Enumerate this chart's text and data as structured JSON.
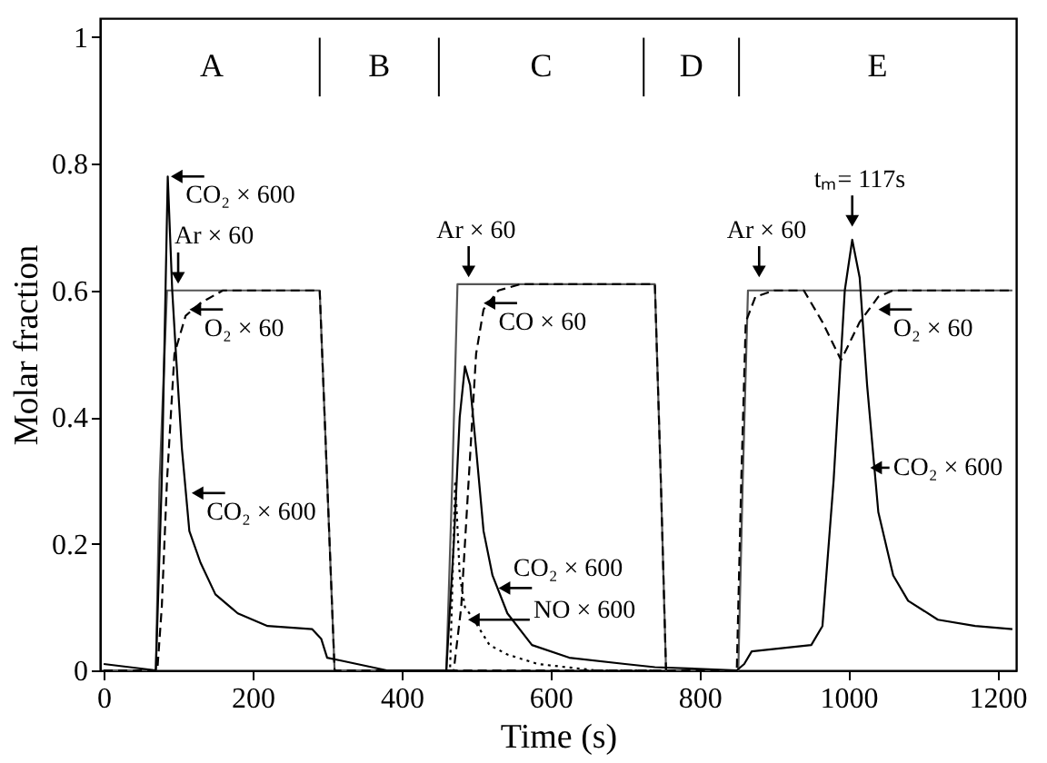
{
  "chart_data": {
    "type": "line",
    "xlabel": "Time (s)",
    "ylabel": "Molar fraction",
    "xlim": [
      -5,
      1225
    ],
    "ylim": [
      0,
      1.03
    ],
    "xticks": [
      0,
      200,
      400,
      600,
      800,
      1000,
      1200
    ],
    "yticks": [
      0,
      0.2,
      0.4,
      0.6,
      0.8,
      1
    ],
    "grid": false,
    "marker": "none",
    "series": [
      {
        "color": "#555555",
        "line_style": "solid",
        "x": [
          0,
          70,
          75,
          85,
          290,
          300,
          310,
          460,
          468,
          475,
          740,
          748,
          755,
          852,
          858,
          865,
          1220
        ],
        "values": [
          0,
          0,
          0.3,
          0.6,
          0.6,
          0.3,
          0,
          0,
          0.3,
          0.61,
          0.61,
          0.3,
          0,
          0,
          0.3,
          0.6,
          0.6
        ]
      },
      {
        "color": "#000000",
        "line_style": "solid",
        "x": [
          0,
          70,
          78,
          86,
          92,
          97,
          105,
          115,
          130,
          150,
          180,
          220,
          280,
          292,
          300,
          320,
          360,
          380,
          460,
          470,
          478,
          485,
          492,
          500,
          510,
          522,
          542,
          575,
          625,
          700,
          740,
          850,
          860,
          870,
          950,
          965,
          980,
          995,
          1005,
          1015,
          1025,
          1040,
          1060,
          1080,
          1120,
          1170,
          1220
        ],
        "values": [
          0.01,
          0,
          0.3,
          0.78,
          0.6,
          0.5,
          0.35,
          0.22,
          0.17,
          0.12,
          0.09,
          0.07,
          0.065,
          0.05,
          0.02,
          0.015,
          0.005,
          0,
          0,
          0.2,
          0.4,
          0.48,
          0.45,
          0.35,
          0.22,
          0.15,
          0.09,
          0.04,
          0.02,
          0.01,
          0.005,
          0,
          0.01,
          0.03,
          0.04,
          0.07,
          0.3,
          0.6,
          0.68,
          0.62,
          0.45,
          0.25,
          0.15,
          0.11,
          0.08,
          0.07,
          0.065
        ]
      },
      {
        "color": "#000000",
        "line_style": "dashed",
        "x": [
          0,
          72,
          78,
          85,
          95,
          110,
          130,
          160,
          290,
          300,
          310,
          850,
          856,
          862,
          875,
          900,
          940,
          965,
          990,
          1015,
          1040,
          1060,
          1220
        ],
        "values": [
          0,
          0,
          0.1,
          0.3,
          0.5,
          0.56,
          0.58,
          0.6,
          0.6,
          0.3,
          0,
          0,
          0.3,
          0.55,
          0.59,
          0.6,
          0.6,
          0.55,
          0.49,
          0.55,
          0.59,
          0.6,
          0.6
        ]
      },
      {
        "color": "#000000",
        "line_style": "dashed",
        "x": [
          440,
          470,
          480,
          490,
          500,
          510,
          530,
          560,
          740,
          748,
          755
        ],
        "values": [
          0,
          0,
          0.1,
          0.3,
          0.5,
          0.57,
          0.6,
          0.61,
          0.61,
          0.3,
          0
        ]
      },
      {
        "color": "#000000",
        "line_style": "dotted",
        "x": [
          440,
          465,
          472,
          478,
          485,
          497,
          518,
          542,
          583,
          660,
          740
        ],
        "values": [
          0,
          0,
          0.3,
          0.15,
          0.1,
          0.08,
          0.04,
          0.025,
          0.01,
          0,
          0
        ]
      }
    ],
    "ref_lines": [
      {
        "axis": "x",
        "value": 290
      },
      {
        "axis": "x",
        "value": 450
      },
      {
        "axis": "x",
        "value": 725
      },
      {
        "axis": "x",
        "value": 853
      }
    ],
    "annotations": [
      "A",
      "B",
      "C",
      "D",
      "E",
      {
        "text": "CO₂ × 600",
        "x": 90,
        "y": 0.78
      },
      {
        "text": "Ar × 60",
        "x": 100,
        "y": 0.6
      },
      {
        "text": "O₂ × 60",
        "x": 115,
        "y": 0.57
      },
      {
        "text": "CO₂ × 600",
        "x": 118,
        "y": 0.28
      },
      {
        "text": "Ar × 60",
        "x": 490,
        "y": 0.61
      },
      {
        "text": "CO × 60",
        "x": 510,
        "y": 0.58
      },
      {
        "text": "CO₂ × 600",
        "x": 530,
        "y": 0.13
      },
      {
        "text": "NO × 600",
        "x": 497,
        "y": 0.08
      },
      {
        "text": "Ar × 60",
        "x": 880,
        "y": 0.61
      },
      {
        "text": "tₘ= 117s",
        "x": 1005,
        "y": 0.69
      },
      {
        "text": "O₂ × 60",
        "x": 1040,
        "y": 0.57
      },
      {
        "text": "CO₂ × 600",
        "x": 1035,
        "y": 0.32
      }
    ]
  }
}
